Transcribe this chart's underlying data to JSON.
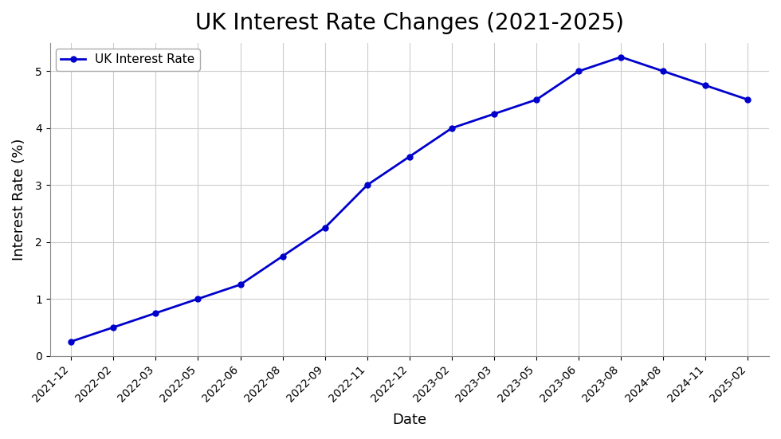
{
  "title": "UK Interest Rate Changes (2021-2025)",
  "xlabel": "Date",
  "ylabel": "Interest Rate (%)",
  "legend_label": "UK Interest Rate",
  "line_color": "#0000CC",
  "marker": "o",
  "marker_size": 5,
  "linewidth": 2.0,
  "background_color": "#ffffff",
  "grid_color": "#cccccc",
  "dates": [
    "2021-12",
    "2022-02",
    "2022-03",
    "2022-05",
    "2022-06",
    "2022-08",
    "2022-09",
    "2022-11",
    "2022-12",
    "2023-02",
    "2023-03",
    "2023-05",
    "2023-06",
    "2023-08",
    "2024-08",
    "2024-11",
    "2025-02"
  ],
  "values": [
    0.25,
    0.5,
    0.75,
    1.0,
    1.25,
    1.75,
    2.25,
    3.0,
    3.5,
    4.0,
    4.25,
    4.5,
    5.0,
    5.25,
    5.0,
    4.75,
    4.5
  ],
  "ylim": [
    0,
    5.5
  ],
  "yticks": [
    0,
    1,
    2,
    3,
    4,
    5
  ],
  "title_fontsize": 20,
  "axis_label_fontsize": 13,
  "tick_fontsize": 10,
  "legend_fontsize": 11
}
